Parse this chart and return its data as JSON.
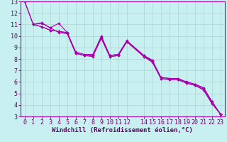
{
  "title": "",
  "xlabel": "Windchill (Refroidissement éolien,°C)",
  "ylabel": "",
  "bg_color": "#c8f0f0",
  "grid_color": "#b8dada",
  "line_color": "#aa00aa",
  "xlim": [
    -0.5,
    23.5
  ],
  "ylim": [
    3,
    13
  ],
  "xticks": [
    0,
    1,
    2,
    3,
    4,
    5,
    6,
    7,
    8,
    9,
    10,
    11,
    12,
    14,
    15,
    16,
    17,
    18,
    19,
    20,
    21,
    22,
    23
  ],
  "yticks": [
    3,
    4,
    5,
    6,
    7,
    8,
    9,
    10,
    11,
    12,
    13
  ],
  "line1_x": [
    0,
    1,
    2,
    3,
    4,
    5,
    6,
    7,
    8,
    9,
    10,
    11,
    12,
    14,
    15,
    16,
    17,
    18,
    19,
    20,
    21,
    22,
    23
  ],
  "line1_y": [
    13,
    11,
    11.1,
    10.7,
    10.3,
    10.2,
    8.5,
    8.3,
    8.3,
    10.0,
    8.3,
    8.4,
    9.6,
    8.3,
    7.9,
    6.4,
    6.3,
    6.3,
    6.0,
    5.8,
    5.5,
    4.3,
    3.2
  ],
  "line2_x": [
    1,
    2,
    3,
    4,
    5,
    6,
    7,
    8,
    9,
    10,
    11,
    12,
    14,
    15,
    16,
    17,
    18,
    19,
    20,
    21,
    22,
    23
  ],
  "line2_y": [
    11,
    11.15,
    10.7,
    11.1,
    10.3,
    8.6,
    8.4,
    8.4,
    9.9,
    8.3,
    8.4,
    9.5,
    8.3,
    7.8,
    6.4,
    6.3,
    6.3,
    6.0,
    5.8,
    5.5,
    4.3,
    3.2
  ],
  "line3_x": [
    1,
    2,
    3,
    4,
    5,
    6,
    7,
    8,
    9,
    10,
    11,
    12,
    14,
    15,
    16,
    17,
    18,
    19,
    20,
    21,
    22,
    23
  ],
  "line3_y": [
    11,
    10.8,
    10.5,
    10.4,
    10.3,
    8.5,
    8.3,
    8.3,
    9.8,
    8.2,
    8.3,
    9.5,
    8.2,
    7.8,
    6.3,
    6.2,
    6.2,
    5.9,
    5.7,
    5.4,
    4.2,
    3.2
  ],
  "line4_x": [
    0,
    1,
    2,
    3,
    4,
    5,
    6,
    7,
    8,
    9,
    10,
    11,
    12,
    14,
    15,
    16,
    17,
    18,
    19,
    20,
    21,
    22,
    23
  ],
  "line4_y": [
    13,
    11,
    10.8,
    10.5,
    10.4,
    10.2,
    8.5,
    8.3,
    8.2,
    9.8,
    8.2,
    8.3,
    9.5,
    8.2,
    7.7,
    6.3,
    6.2,
    6.2,
    5.9,
    5.7,
    5.3,
    4.1,
    3.2
  ],
  "font_family": "monospace",
  "xlabel_fontsize": 6.5,
  "tick_fontsize": 6
}
